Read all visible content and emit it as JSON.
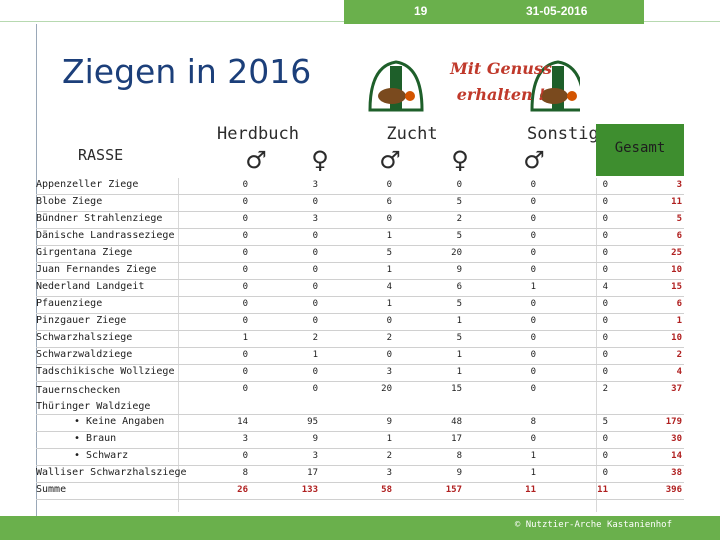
{
  "header": {
    "page_number": "19",
    "date": "31-05-2016"
  },
  "title": "Ziegen in 2016",
  "logo": {
    "text_line1": "Mit Genuss",
    "text_line2": "erhalten !"
  },
  "table": {
    "rasse_header": "RASSE",
    "groups": [
      "Herdbuch",
      "Zucht",
      "Sonstige"
    ],
    "male_symbol": "♂",
    "female_symbol": "♀",
    "gesamt_header": "Gesamt",
    "rows": [
      {
        "label": "Appenzeller Ziege",
        "values": [
          "0",
          "3",
          "0",
          "0",
          "0",
          "0"
        ],
        "total": "3"
      },
      {
        "label": "Blobe Ziege",
        "values": [
          "0",
          "0",
          "6",
          "5",
          "0",
          "0"
        ],
        "total": "11"
      },
      {
        "label": "Bündner Strahlenziege",
        "values": [
          "0",
          "3",
          "0",
          "2",
          "0",
          "0"
        ],
        "total": "5"
      },
      {
        "label": "Dänische Landrasseziege",
        "values": [
          "0",
          "0",
          "1",
          "5",
          "0",
          "0"
        ],
        "total": "6"
      },
      {
        "label": "Girgentana Ziege",
        "values": [
          "0",
          "0",
          "5",
          "20",
          "0",
          "0"
        ],
        "total": "25"
      },
      {
        "label": "Juan Fernandes Ziege",
        "values": [
          "0",
          "0",
          "1",
          "9",
          "0",
          "0"
        ],
        "total": "10"
      },
      {
        "label": "Nederland Landgeit",
        "values": [
          "0",
          "0",
          "4",
          "6",
          "1",
          "4"
        ],
        "total": "15"
      },
      {
        "label": "Pfauenziege",
        "values": [
          "0",
          "0",
          "1",
          "5",
          "0",
          "0"
        ],
        "total": "6"
      },
      {
        "label": "Pinzgauer Ziege",
        "values": [
          "0",
          "0",
          "0",
          "1",
          "0",
          "0"
        ],
        "total": "1"
      },
      {
        "label": "Schwarzhalsziege",
        "values": [
          "1",
          "2",
          "2",
          "5",
          "0",
          "0"
        ],
        "total": "10"
      },
      {
        "label": "Schwarzwaldziege",
        "values": [
          "0",
          "1",
          "0",
          "1",
          "0",
          "0"
        ],
        "total": "2"
      },
      {
        "label": "Tadschikische Wollziege",
        "values": [
          "0",
          "0",
          "3",
          "1",
          "0",
          "0"
        ],
        "total": "4"
      },
      {
        "label": "Tauernschecken",
        "label2": "Thüringer Waldziege",
        "values": [
          "0",
          "0",
          "20",
          "15",
          "0",
          "2"
        ],
        "total": "37"
      },
      {
        "label": "Keine Angaben",
        "values": [
          "14",
          "95",
          "9",
          "48",
          "8",
          "5"
        ],
        "total": "179",
        "sub": true
      },
      {
        "label": "Braun",
        "values": [
          "3",
          "9",
          "1",
          "17",
          "0",
          "0"
        ],
        "total": "30",
        "sub": true
      },
      {
        "label": "Schwarz",
        "values": [
          "0",
          "3",
          "2",
          "8",
          "1",
          "0"
        ],
        "total": "14",
        "sub": true
      },
      {
        "label": "Walliser Schwarzhalsziege",
        "values": [
          "8",
          "17",
          "3",
          "9",
          "1",
          "0"
        ],
        "total": "38"
      },
      {
        "label": "Summe",
        "values": [
          "26",
          "133",
          "58",
          "157",
          "11",
          "11"
        ],
        "total": "396",
        "summe": true
      }
    ]
  },
  "footer": {
    "copyright": "© Nutztier-Arche Kastanienhof"
  },
  "colors": {
    "accent_green": "#6ab04c",
    "gesamt_green": "#3e8e2f",
    "title_blue": "#1c3f7a",
    "total_red": "#b02020"
  }
}
